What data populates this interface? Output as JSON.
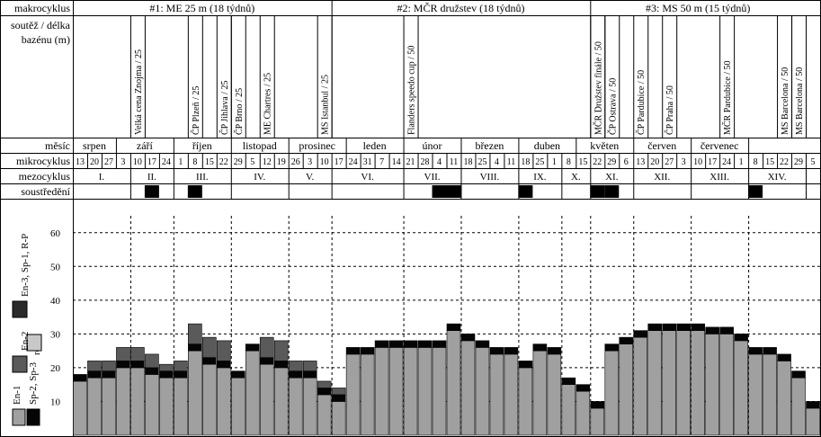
{
  "labels": {
    "makrocyklus": "makrocyklus",
    "soutez_line1": "soutěž / délka",
    "soutez_line2": "bazénu (m)",
    "mesic": "měsíc",
    "mikrocyklus": "mikrocyklus",
    "mezocyklus": "mezocyklus",
    "soustredeni": "soustředění"
  },
  "macrocycles": [
    {
      "label": "#1: ME 25 m  (18 týdnů)",
      "weeks": 18
    },
    {
      "label": "#2: MČR družstev (18 týdnů)",
      "weeks": 18
    },
    {
      "label": "#3: MS 50 m (15 týdnů)",
      "weeks": 15
    }
  ],
  "competitions": [
    {
      "week": 4,
      "label": "Velká cena Znojma / 25"
    },
    {
      "week": 8,
      "label": "ČP Plzeň / 25"
    },
    {
      "week": 10,
      "label": "ČP Jihlava / 25"
    },
    {
      "week": 11,
      "label": "ČP Brno / 25"
    },
    {
      "week": 13,
      "label": "ME Chartres / 25"
    },
    {
      "week": 17,
      "label": "MS Istanbul / 25"
    },
    {
      "week": 23,
      "label": "Flanders speedo cup / 50"
    },
    {
      "week": 36,
      "label": "MČR Družstev finále / 50"
    },
    {
      "week": 37,
      "label": "ČP Ostrava / 50"
    },
    {
      "week": 39,
      "label": "ČP Pardubice / 50"
    },
    {
      "week": 41,
      "label": "ČP Praha / 50"
    },
    {
      "week": 45,
      "label": "MČR Pardubice / 50"
    },
    {
      "week": 49,
      "label": "MS Barcelona / 50"
    },
    {
      "week": 50,
      "label": "MS Barcelona / 50"
    }
  ],
  "months": [
    {
      "label": "srpen",
      "start": 0,
      "end": 3
    },
    {
      "label": "září",
      "start": 3,
      "end": 7
    },
    {
      "label": "říjen",
      "start": 7,
      "end": 11
    },
    {
      "label": "listopad",
      "start": 11,
      "end": 15
    },
    {
      "label": "prosinec",
      "start": 15,
      "end": 19
    },
    {
      "label": "leden",
      "start": 19,
      "end": 23
    },
    {
      "label": "únor",
      "start": 23,
      "end": 27
    },
    {
      "label": "březen",
      "start": 27,
      "end": 31
    },
    {
      "label": "duben",
      "start": 31,
      "end": 35
    },
    {
      "label": "květen",
      "start": 35,
      "end": 39
    },
    {
      "label": "červen",
      "start": 39,
      "end": 43
    },
    {
      "label": "červenec",
      "start": 43,
      "end": 47
    }
  ],
  "micro_days": [
    "13",
    "20",
    "27",
    "3",
    "10",
    "17",
    "24",
    "1",
    "8",
    "15",
    "22",
    "29",
    "5",
    "12",
    "19",
    "26",
    "3",
    "10",
    "17",
    "24",
    "31",
    "7",
    "14",
    "21",
    "28",
    "4",
    "11",
    "18",
    "25",
    "4",
    "11",
    "18",
    "25",
    "1",
    "8",
    "15",
    "22",
    "29",
    "6",
    "13",
    "20",
    "27",
    "3",
    "10",
    "17",
    "24",
    "1",
    "8",
    "15",
    "22",
    "29",
    "5"
  ],
  "mesocycles": [
    {
      "label": "I.",
      "start": 0,
      "end": 4
    },
    {
      "label": "II.",
      "start": 4,
      "end": 7
    },
    {
      "label": "III.",
      "start": 7,
      "end": 11
    },
    {
      "label": "IV.",
      "start": 11,
      "end": 15
    },
    {
      "label": "V.",
      "start": 15,
      "end": 18
    },
    {
      "label": "VI.",
      "start": 18,
      "end": 23
    },
    {
      "label": "VII.",
      "start": 23,
      "end": 27
    },
    {
      "label": "VIII.",
      "start": 27,
      "end": 31
    },
    {
      "label": "IX.",
      "start": 31,
      "end": 34
    },
    {
      "label": "X.",
      "start": 34,
      "end": 36
    },
    {
      "label": "XI.",
      "start": 36,
      "end": 39
    },
    {
      "label": "XII.",
      "start": 39,
      "end": 43
    },
    {
      "label": "XIII.",
      "start": 43,
      "end": 47
    },
    {
      "label": "XIV.",
      "start": 47,
      "end": 51
    }
  ],
  "camps": [
    5,
    8,
    25,
    26,
    31,
    36,
    37,
    47
  ],
  "legend": [
    {
      "label": "En-3, Sp-1, R-P",
      "color": "#2a2a2a"
    },
    {
      "label": "rec",
      "color": "#c8c8c8"
    },
    {
      "label": "En-2",
      "color": "#5a5a5a"
    },
    {
      "label": "En-1",
      "color": "#a0a0a0"
    },
    {
      "label": "Sp-2, Sp-3",
      "color": "#050505"
    }
  ],
  "chart_data": {
    "type": "bar",
    "stacked": true,
    "ylim": [
      0,
      65
    ],
    "yticks": [
      10,
      20,
      30,
      40,
      50,
      60
    ],
    "weeks": 52,
    "series": [
      {
        "name": "En-1",
        "color": "#a0a0a0",
        "values": [
          16,
          17,
          17,
          20,
          20,
          18,
          17,
          17,
          25,
          21,
          20,
          17,
          25,
          21,
          20,
          17,
          17,
          12,
          10,
          24,
          24,
          26,
          26,
          26,
          26,
          26,
          31,
          28,
          26,
          24,
          24,
          20,
          25,
          24,
          15,
          13,
          8,
          25,
          27,
          29,
          31,
          31,
          31,
          31,
          30,
          30,
          28,
          24,
          24,
          22,
          17,
          8
        ]
      },
      {
        "name": "Sp-2, Sp-3",
        "color": "#050505",
        "values": [
          2,
          2,
          2,
          2,
          2,
          2,
          2,
          2,
          2,
          2,
          2,
          2,
          2,
          2,
          2,
          2,
          2,
          2,
          2,
          2,
          2,
          2,
          2,
          2,
          2,
          2,
          2,
          2,
          2,
          2,
          2,
          2,
          2,
          2,
          2,
          2,
          2,
          2,
          2,
          2,
          2,
          2,
          2,
          2,
          2,
          2,
          2,
          2,
          2,
          2,
          2,
          2
        ]
      },
      {
        "name": "En-2",
        "color": "#5a5a5a",
        "values": [
          0,
          3,
          3,
          4,
          4,
          4,
          2,
          3,
          6,
          6,
          6,
          0,
          0,
          6,
          6,
          3,
          3,
          2,
          2,
          0,
          0,
          0,
          0,
          0,
          0,
          0,
          0,
          0,
          0,
          0,
          0,
          0,
          0,
          0,
          0,
          0,
          0,
          0,
          0,
          0,
          0,
          0,
          0,
          0,
          0,
          0,
          0,
          0,
          0,
          0,
          0,
          0
        ]
      },
      {
        "name": "En-3, Sp-1, R-P",
        "color": "#2a2a2a",
        "values": [
          0,
          0,
          0,
          0,
          0,
          0,
          0,
          0,
          0,
          0,
          0,
          0,
          0,
          0,
          0,
          0,
          0,
          0,
          0,
          0,
          0,
          0,
          0,
          0,
          0,
          0,
          0,
          0,
          0,
          0,
          0,
          0,
          0,
          0,
          0,
          0,
          0,
          0,
          0,
          0,
          0,
          0,
          0,
          0,
          0,
          0,
          0,
          0,
          0,
          0,
          0,
          0
        ]
      },
      {
        "name": "rec",
        "color": "#c8c8c8",
        "values": [
          0,
          0,
          0,
          0,
          0,
          0,
          0,
          0,
          0,
          0,
          0,
          0,
          0,
          0,
          0,
          0,
          0,
          0,
          0,
          0,
          0,
          0,
          0,
          0,
          0,
          0,
          0,
          0,
          0,
          0,
          0,
          0,
          0,
          0,
          0,
          0,
          0,
          0,
          0,
          0,
          0,
          0,
          0,
          0,
          0,
          0,
          0,
          0,
          0,
          0,
          0,
          0
        ]
      }
    ]
  }
}
